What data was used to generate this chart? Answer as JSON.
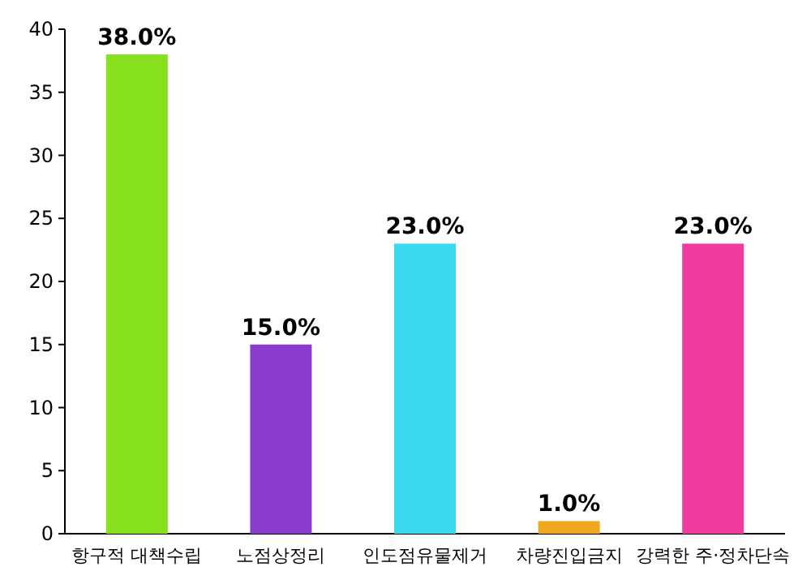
{
  "chart_data": {
    "type": "bar",
    "categories": [
      "항구적 대책수립",
      "노점상정리",
      "인도점유물제거",
      "차량진입금지",
      "강력한 주·정차단속"
    ],
    "values": [
      38,
      15,
      23,
      1,
      23
    ],
    "value_labels": [
      "38.0%",
      "15.0%",
      "23.0%",
      "1.0%",
      "23.0%"
    ],
    "colors": [
      "#86e01e",
      "#8a3ccc",
      "#3cd8f0",
      "#f0a81e",
      "#f03ca0"
    ],
    "ylim": [
      0,
      40
    ],
    "yticks": [
      0,
      5,
      10,
      15,
      20,
      25,
      30,
      35,
      40
    ],
    "grid": false
  }
}
